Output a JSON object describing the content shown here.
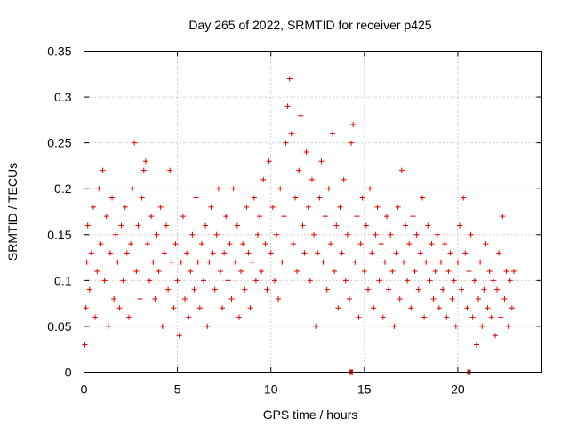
{
  "chart_data": {
    "type": "scatter",
    "title": "Day 265 of 2022, SRMTID for receiver p425",
    "xlabel": "GPS time / hours",
    "ylabel": "SRMTID / TECUs",
    "xlim": [
      0,
      24.5
    ],
    "ylim": [
      0,
      0.35
    ],
    "x_ticks": [
      0,
      5,
      10,
      15,
      20
    ],
    "x_tick_labels": [
      "0",
      "5",
      "10",
      "15",
      "20"
    ],
    "y_ticks": [
      0,
      0.05,
      0.1,
      0.15,
      0.2,
      0.25,
      0.3,
      0.35
    ],
    "y_tick_labels": [
      "0",
      "0.05",
      "0.1",
      "0.15",
      "0.2",
      "0.25",
      "0.3",
      "0.35"
    ],
    "grid": true,
    "marker": "+",
    "color": "#e00000",
    "x_range_of_points": [
      0,
      23
    ],
    "typical_y_range": [
      0.03,
      0.25
    ],
    "baseline_markers_x": [
      14.3,
      20.6
    ],
    "series": [
      {
        "name": "SRMTID",
        "points": [
          [
            0.05,
            0.03
          ],
          [
            0.1,
            0.07
          ],
          [
            0.15,
            0.12
          ],
          [
            0.2,
            0.16
          ],
          [
            0.3,
            0.09
          ],
          [
            0.4,
            0.13
          ],
          [
            0.5,
            0.18
          ],
          [
            0.6,
            0.06
          ],
          [
            0.7,
            0.11
          ],
          [
            0.8,
            0.2
          ],
          [
            0.9,
            0.14
          ],
          [
            1.0,
            0.22
          ],
          [
            1.1,
            0.1
          ],
          [
            1.2,
            0.17
          ],
          [
            1.3,
            0.05
          ],
          [
            1.4,
            0.13
          ],
          [
            1.5,
            0.19
          ],
          [
            1.6,
            0.08
          ],
          [
            1.7,
            0.15
          ],
          [
            1.8,
            0.12
          ],
          [
            1.9,
            0.07
          ],
          [
            2.0,
            0.16
          ],
          [
            2.1,
            0.1
          ],
          [
            2.2,
            0.18
          ],
          [
            2.3,
            0.13
          ],
          [
            2.4,
            0.06
          ],
          [
            2.5,
            0.14
          ],
          [
            2.6,
            0.2
          ],
          [
            2.7,
            0.25
          ],
          [
            2.8,
            0.11
          ],
          [
            2.9,
            0.16
          ],
          [
            3.0,
            0.08
          ],
          [
            3.1,
            0.19
          ],
          [
            3.2,
            0.22
          ],
          [
            3.3,
            0.23
          ],
          [
            3.4,
            0.14
          ],
          [
            3.5,
            0.1
          ],
          [
            3.6,
            0.17
          ],
          [
            3.7,
            0.12
          ],
          [
            3.8,
            0.08
          ],
          [
            3.9,
            0.15
          ],
          [
            4.0,
            0.11
          ],
          [
            4.1,
            0.18
          ],
          [
            4.2,
            0.05
          ],
          [
            4.3,
            0.13
          ],
          [
            4.4,
            0.16
          ],
          [
            4.5,
            0.09
          ],
          [
            4.6,
            0.22
          ],
          [
            4.7,
            0.12
          ],
          [
            4.8,
            0.07
          ],
          [
            4.9,
            0.14
          ],
          [
            5.0,
            0.1
          ],
          [
            5.1,
            0.04
          ],
          [
            5.2,
            0.12
          ],
          [
            5.3,
            0.17
          ],
          [
            5.4,
            0.08
          ],
          [
            5.5,
            0.13
          ],
          [
            5.6,
            0.06
          ],
          [
            5.7,
            0.11
          ],
          [
            5.8,
            0.15
          ],
          [
            5.9,
            0.09
          ],
          [
            6.0,
            0.19
          ],
          [
            6.1,
            0.12
          ],
          [
            6.2,
            0.07
          ],
          [
            6.3,
            0.14
          ],
          [
            6.4,
            0.1
          ],
          [
            6.5,
            0.16
          ],
          [
            6.6,
            0.05
          ],
          [
            6.7,
            0.12
          ],
          [
            6.8,
            0.18
          ],
          [
            6.9,
            0.13
          ],
          [
            7.0,
            0.09
          ],
          [
            7.1,
            0.15
          ],
          [
            7.2,
            0.2
          ],
          [
            7.3,
            0.11
          ],
          [
            7.4,
            0.07
          ],
          [
            7.5,
            0.13
          ],
          [
            7.6,
            0.17
          ],
          [
            7.7,
            0.1
          ],
          [
            7.8,
            0.14
          ],
          [
            7.9,
            0.08
          ],
          [
            8.0,
            0.2
          ],
          [
            8.1,
            0.12
          ],
          [
            8.2,
            0.16
          ],
          [
            8.3,
            0.06
          ],
          [
            8.4,
            0.11
          ],
          [
            8.5,
            0.14
          ],
          [
            8.6,
            0.09
          ],
          [
            8.7,
            0.18
          ],
          [
            8.8,
            0.13
          ],
          [
            8.9,
            0.07
          ],
          [
            9.0,
            0.12
          ],
          [
            9.1,
            0.19
          ],
          [
            9.2,
            0.1
          ],
          [
            9.3,
            0.15
          ],
          [
            9.4,
            0.17
          ],
          [
            9.5,
            0.11
          ],
          [
            9.6,
            0.21
          ],
          [
            9.7,
            0.14
          ],
          [
            9.8,
            0.09
          ],
          [
            9.9,
            0.23
          ],
          [
            10.0,
            0.13
          ],
          [
            10.1,
            0.18
          ],
          [
            10.2,
            0.1
          ],
          [
            10.3,
            0.15
          ],
          [
            10.4,
            0.08
          ],
          [
            10.5,
            0.2
          ],
          [
            10.6,
            0.12
          ],
          [
            10.7,
            0.17
          ],
          [
            10.8,
            0.25
          ],
          [
            10.9,
            0.29
          ],
          [
            11.0,
            0.32
          ],
          [
            11.1,
            0.26
          ],
          [
            11.2,
            0.14
          ],
          [
            11.3,
            0.19
          ],
          [
            11.4,
            0.11
          ],
          [
            11.5,
            0.22
          ],
          [
            11.6,
            0.28
          ],
          [
            11.7,
            0.16
          ],
          [
            11.8,
            0.13
          ],
          [
            11.9,
            0.24
          ],
          [
            12.0,
            0.18
          ],
          [
            12.1,
            0.1
          ],
          [
            12.2,
            0.21
          ],
          [
            12.3,
            0.15
          ],
          [
            12.4,
            0.05
          ],
          [
            12.5,
            0.13
          ],
          [
            12.6,
            0.19
          ],
          [
            12.7,
            0.23
          ],
          [
            12.8,
            0.12
          ],
          [
            12.9,
            0.17
          ],
          [
            13.0,
            0.09
          ],
          [
            13.1,
            0.2
          ],
          [
            13.2,
            0.14
          ],
          [
            13.3,
            0.26
          ],
          [
            13.4,
            0.11
          ],
          [
            13.5,
            0.16
          ],
          [
            13.6,
            0.07
          ],
          [
            13.7,
            0.18
          ],
          [
            13.8,
            0.13
          ],
          [
            13.9,
            0.21
          ],
          [
            14.0,
            0.1
          ],
          [
            14.1,
            0.15
          ],
          [
            14.2,
            0.08
          ],
          [
            14.3,
            0.25
          ],
          [
            14.4,
            0.27
          ],
          [
            14.5,
            0.12
          ],
          [
            14.6,
            0.17
          ],
          [
            14.7,
            0.06
          ],
          [
            14.8,
            0.14
          ],
          [
            14.9,
            0.19
          ],
          [
            15.0,
            0.11
          ],
          [
            15.1,
            0.16
          ],
          [
            15.2,
            0.09
          ],
          [
            15.3,
            0.2
          ],
          [
            15.4,
            0.13
          ],
          [
            15.5,
            0.07
          ],
          [
            15.6,
            0.15
          ],
          [
            15.7,
            0.18
          ],
          [
            15.8,
            0.1
          ],
          [
            15.9,
            0.14
          ],
          [
            16.0,
            0.06
          ],
          [
            16.1,
            0.12
          ],
          [
            16.2,
            0.17
          ],
          [
            16.3,
            0.09
          ],
          [
            16.4,
            0.15
          ],
          [
            16.5,
            0.11
          ],
          [
            16.6,
            0.05
          ],
          [
            16.7,
            0.13
          ],
          [
            16.8,
            0.18
          ],
          [
            16.9,
            0.08
          ],
          [
            17.0,
            0.22
          ],
          [
            17.1,
            0.12
          ],
          [
            17.2,
            0.16
          ],
          [
            17.3,
            0.1
          ],
          [
            17.4,
            0.14
          ],
          [
            17.5,
            0.07
          ],
          [
            17.6,
            0.17
          ],
          [
            17.7,
            0.11
          ],
          [
            17.8,
            0.15
          ],
          [
            17.9,
            0.09
          ],
          [
            18.0,
            0.13
          ],
          [
            18.1,
            0.19
          ],
          [
            18.2,
            0.06
          ],
          [
            18.3,
            0.12
          ],
          [
            18.4,
            0.16
          ],
          [
            18.5,
            0.1
          ],
          [
            18.6,
            0.14
          ],
          [
            18.7,
            0.08
          ],
          [
            18.8,
            0.11
          ],
          [
            18.9,
            0.15
          ],
          [
            19.0,
            0.07
          ],
          [
            19.1,
            0.12
          ],
          [
            19.2,
            0.09
          ],
          [
            19.3,
            0.14
          ],
          [
            19.4,
            0.06
          ],
          [
            19.5,
            0.11
          ],
          [
            19.6,
            0.13
          ],
          [
            19.7,
            0.08
          ],
          [
            19.8,
            0.1
          ],
          [
            19.9,
            0.05
          ],
          [
            20.0,
            0.12
          ],
          [
            20.1,
            0.16
          ],
          [
            20.2,
            0.09
          ],
          [
            20.3,
            0.19
          ],
          [
            20.4,
            0.13
          ],
          [
            20.5,
            0.07
          ],
          [
            20.6,
            0.11
          ],
          [
            20.7,
            0.15
          ],
          [
            20.8,
            0.06
          ],
          [
            20.9,
            0.1
          ],
          [
            21.0,
            0.03
          ],
          [
            21.1,
            0.08
          ],
          [
            21.2,
            0.12
          ],
          [
            21.3,
            0.05
          ],
          [
            21.4,
            0.09
          ],
          [
            21.5,
            0.14
          ],
          [
            21.6,
            0.07
          ],
          [
            21.7,
            0.11
          ],
          [
            21.8,
            0.06
          ],
          [
            21.9,
            0.1
          ],
          [
            22.0,
            0.04
          ],
          [
            22.1,
            0.09
          ],
          [
            22.2,
            0.13
          ],
          [
            22.3,
            0.06
          ],
          [
            22.4,
            0.17
          ],
          [
            22.5,
            0.08
          ],
          [
            22.6,
            0.11
          ],
          [
            22.7,
            0.05
          ],
          [
            22.8,
            0.1
          ],
          [
            22.9,
            0.07
          ],
          [
            23.0,
            0.11
          ]
        ]
      }
    ]
  }
}
